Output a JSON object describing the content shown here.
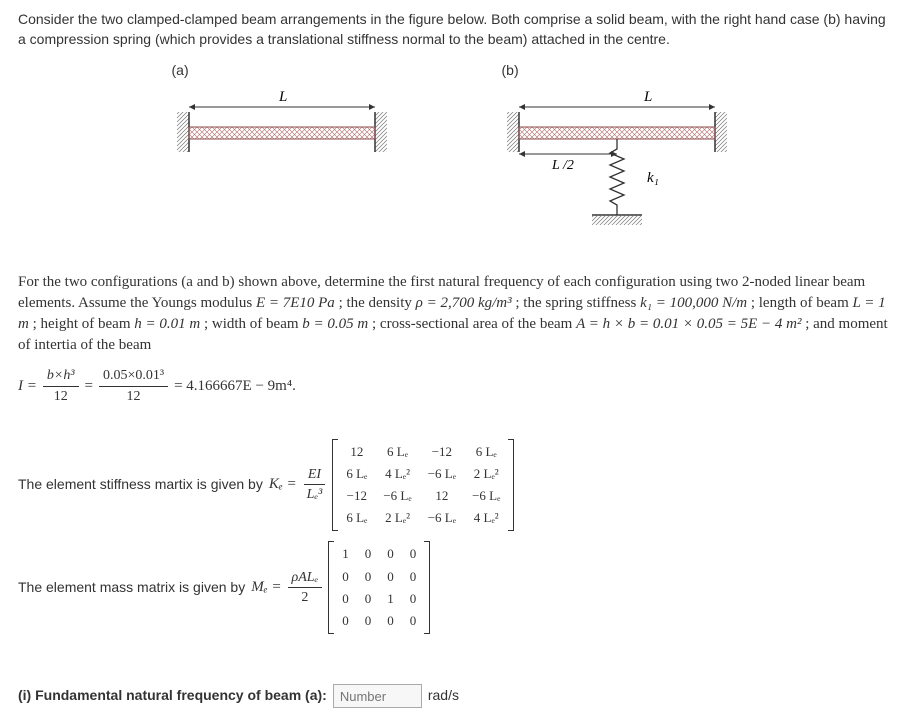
{
  "intro_text": "Consider the two clamped-clamped beam arrangements in the figure below. Both comprise a solid beam, with the right hand case (b) having a compression spring (which provides a translational stiffness normal to the beam) attached in the centre.",
  "fig_a_label": "(a)",
  "fig_b_label": "(b)",
  "fig_L": "L",
  "fig_Lhalf": "L /2",
  "fig_k1": "k₁",
  "problem_text_1": "For the two configurations (a and b) shown above, determine the first natural frequency of each configuration using two 2-noded linear beam elements.   Assume the Youngs modulus ",
  "E_eq": "E = 7E10 Pa",
  "problem_text_2": "; the density ",
  "rho_eq": "ρ = 2,700 kg/m³",
  "problem_text_3": " ; the spring stiffness ",
  "k1_eq": "k₁ = 100,000 N/m",
  "problem_text_4": "; length of beam ",
  "L_eq": "L = 1 m",
  "problem_text_5": "; height of beam ",
  "h_eq": "h = 0.01 m",
  "problem_text_6": "; width of beam ",
  "b_eq": "b = 0.05 m",
  "problem_text_7": "; cross-sectional area of the beam ",
  "A_eq": "A = h × b = 0.01 × 0.05 = 5E − 4  m²",
  "problem_text_8": "; and moment of intertia of the beam",
  "I_lhs": "I =",
  "I_frac1_num": "b×h³",
  "I_frac1_den": "12",
  "eq_sign": "=",
  "I_frac2_num": "0.05×0.01³",
  "I_frac2_den": "12",
  "I_result": "= 4.166667E − 9m⁴.",
  "Ke_text": "The element stiffness martix is given by ",
  "Ke_sym": "Kₑ =",
  "Ke_coef_num": "EI",
  "Ke_coef_den": "Lₑ³",
  "Ke_matrix": [
    [
      "12",
      "6 Lₑ",
      "−12",
      "6 Lₑ"
    ],
    [
      "6 Lₑ",
      "4 Lₑ²",
      "−6 Lₑ",
      "2 Lₑ²"
    ],
    [
      "−12",
      "−6 Lₑ",
      "12",
      "−6 Lₑ"
    ],
    [
      "6 Lₑ",
      "2 Lₑ²",
      "−6 Lₑ",
      "4 Lₑ²"
    ]
  ],
  "Me_text": "The element mass matrix is given by ",
  "Me_sym": "Mₑ =",
  "Me_coef_num": "ρALₑ",
  "Me_coef_den": "2",
  "Me_matrix": [
    [
      "1",
      "0",
      "0",
      "0"
    ],
    [
      "0",
      "0",
      "0",
      "0"
    ],
    [
      "0",
      "0",
      "1",
      "0"
    ],
    [
      "0",
      "0",
      "0",
      "0"
    ]
  ],
  "q1_label": "(i) Fundamental natural frequency of beam (a):",
  "q1_placeholder": "Number",
  "q1_units": "rad/s"
}
